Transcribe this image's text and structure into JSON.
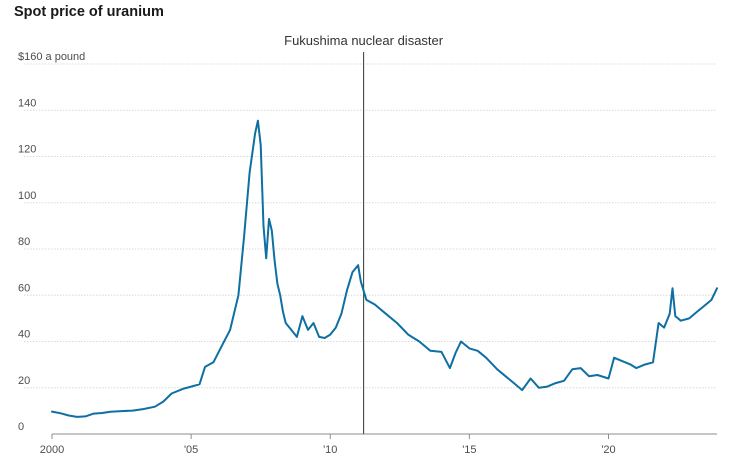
{
  "title": "Spot price of uranium",
  "chart_data": {
    "type": "line",
    "title": "Spot price of uranium",
    "ylabel": "$160 a pound",
    "ylim": [
      0,
      160
    ],
    "xlim": [
      2000,
      2023.9
    ],
    "grid": true,
    "y_ticks": [
      0,
      20,
      40,
      60,
      80,
      100,
      120,
      140,
      160
    ],
    "y_tick_labels": [
      "0",
      "20",
      "40",
      "60",
      "80",
      "100",
      "120",
      "140",
      "$160 a pound"
    ],
    "x_ticks": [
      2000,
      2005,
      2010,
      2015,
      2020
    ],
    "x_tick_labels": [
      "2000",
      "'05",
      "'10",
      "'15",
      "'20"
    ],
    "annotation": {
      "x": 2011.2,
      "label": "Fukushima nuclear disaster"
    },
    "colors": {
      "line": "#0e6fa3",
      "grid": "#d9d9d9",
      "annotation": "#333333"
    },
    "series": [
      {
        "x": [
          2000.0,
          2000.3,
          2000.6,
          2000.9,
          2001.2,
          2001.5,
          2001.8,
          2002.1,
          2002.5,
          2002.9,
          2003.3,
          2003.7,
          2004.0,
          2004.3,
          2004.7,
          2005.0,
          2005.3,
          2005.5,
          2005.8,
          2006.1,
          2006.4,
          2006.7,
          2006.9,
          2007.1,
          2007.3,
          2007.4,
          2007.5,
          2007.6,
          2007.7,
          2007.8,
          2007.9,
          2008.0,
          2008.1,
          2008.2,
          2008.3,
          2008.4,
          2008.6,
          2008.8,
          2009.0,
          2009.2,
          2009.4,
          2009.6,
          2009.8,
          2010.0,
          2010.2,
          2010.4,
          2010.6,
          2010.8,
          2011.0,
          2011.1,
          2011.3,
          2011.6,
          2012.0,
          2012.4,
          2012.8,
          2013.2,
          2013.6,
          2014.0,
          2014.3,
          2014.5,
          2014.7,
          2015.0,
          2015.3,
          2015.6,
          2016.0,
          2016.3,
          2016.6,
          2016.9,
          2017.2,
          2017.5,
          2017.8,
          2018.1,
          2018.4,
          2018.7,
          2019.0,
          2019.3,
          2019.6,
          2020.0,
          2020.2,
          2020.5,
          2020.8,
          2021.0,
          2021.3,
          2021.6,
          2021.8,
          2022.0,
          2022.2,
          2022.3,
          2022.4,
          2022.6,
          2022.9,
          2023.2,
          2023.5,
          2023.7,
          2023.9
        ],
        "y": [
          9.7,
          9.0,
          8.0,
          7.4,
          7.6,
          8.8,
          9.1,
          9.6,
          9.9,
          10.1,
          10.8,
          11.8,
          14.0,
          17.5,
          19.5,
          20.5,
          21.5,
          29.0,
          31.0,
          38.0,
          45.0,
          60.0,
          85.0,
          113.0,
          130.0,
          135.5,
          125.0,
          90.0,
          76.0,
          93.0,
          88.0,
          75.0,
          65.0,
          60.0,
          53.0,
          48.0,
          45.0,
          42.0,
          51.0,
          45.0,
          48.0,
          42.0,
          41.5,
          43.0,
          46.0,
          52.0,
          62.0,
          70.0,
          73.0,
          66.0,
          58.0,
          56.0,
          52.0,
          48.0,
          43.0,
          40.0,
          36.0,
          35.5,
          28.5,
          35.0,
          40.0,
          37.0,
          36.0,
          33.0,
          28.0,
          25.0,
          22.0,
          19.0,
          24.0,
          20.0,
          20.5,
          22.0,
          23.0,
          28.0,
          28.5,
          25.0,
          25.5,
          24.0,
          33.0,
          31.5,
          30.0,
          28.5,
          30.0,
          31.0,
          48.0,
          46.0,
          52.0,
          63.0,
          51.0,
          49.0,
          50.0,
          53.0,
          56.0,
          58.0,
          63.0
        ]
      }
    ]
  }
}
